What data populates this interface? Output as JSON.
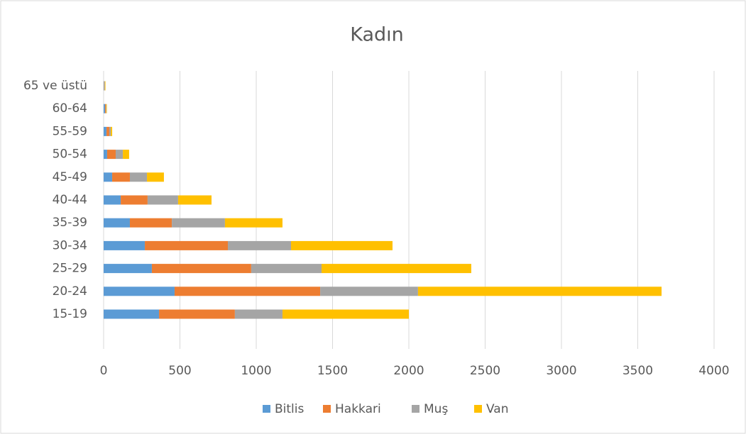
{
  "chart_data": {
    "type": "stacked_bar_horizontal",
    "title": "Kadın",
    "categories": [
      "15-19",
      "20-24",
      "25-29",
      "30-34",
      "35-39",
      "40-44",
      "45-49",
      "50-54",
      "55-59",
      "60-64",
      "65 ve üstü"
    ],
    "series": [
      {
        "name": "Bitlis",
        "color": "#5b9bd5",
        "values": [
          363,
          465,
          316,
          270,
          172,
          112,
          56,
          23,
          19,
          9,
          3
        ]
      },
      {
        "name": "Hakkari",
        "color": "#ed7d31",
        "values": [
          497,
          954,
          651,
          544,
          275,
          176,
          116,
          56,
          18,
          5,
          2
        ]
      },
      {
        "name": "Muş",
        "color": "#a5a5a5",
        "values": [
          312,
          641,
          461,
          414,
          348,
          200,
          112,
          47,
          10,
          3,
          3
        ]
      },
      {
        "name": "Van",
        "color": "#ffc000",
        "values": [
          828,
          1596,
          981,
          665,
          377,
          219,
          111,
          41,
          9,
          4,
          4
        ]
      }
    ],
    "xlim": [
      0,
      4000
    ],
    "xticks": [
      0,
      500,
      1000,
      1500,
      2000,
      2500,
      3000,
      3500,
      4000
    ],
    "grid": true,
    "legend": "bottom"
  }
}
